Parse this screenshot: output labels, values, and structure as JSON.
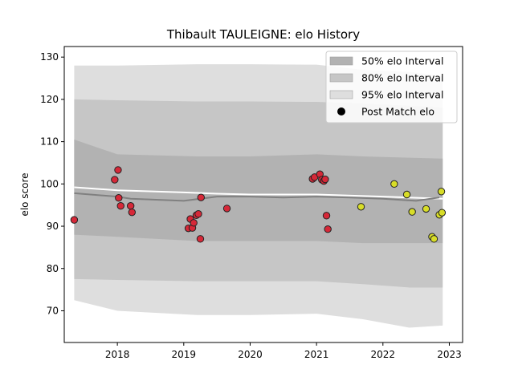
{
  "chart_data": {
    "type": "scatter",
    "title": "Thibault TAULEIGNE: elo History",
    "xlabel": "",
    "ylabel": "elo score",
    "xlim": [
      2017.2,
      2023.2
    ],
    "ylim": [
      62.5,
      132.5
    ],
    "x_ticks": [
      2018,
      2019,
      2020,
      2021,
      2022,
      2023
    ],
    "x_tick_labels": [
      "2018",
      "2019",
      "2020",
      "2021",
      "2022",
      "2023"
    ],
    "y_ticks": [
      70,
      80,
      90,
      100,
      110,
      120,
      130
    ],
    "y_tick_labels": [
      "70",
      "80",
      "90",
      "100",
      "110",
      "120",
      "130"
    ],
    "grid": false,
    "legend_position": "top-right",
    "legend": [
      {
        "label": "50% elo Interval",
        "kind": "patch",
        "color": "#b2b2b2"
      },
      {
        "label": "80% elo Interval",
        "kind": "patch",
        "color": "#c6c6c6"
      },
      {
        "label": "95% elo Interval",
        "kind": "patch",
        "color": "#dedede"
      },
      {
        "label": "Post Match elo",
        "kind": "marker",
        "color": "#000000"
      }
    ],
    "bands": [
      {
        "name": "95% elo Interval",
        "color": "#dedede",
        "x": [
          2017.35,
          2018.0,
          2019.2,
          2020.0,
          2021.0,
          2021.7,
          2022.4,
          2022.9
        ],
        "upper": [
          128.0,
          128.0,
          128.3,
          128.3,
          128.2,
          127.0,
          126.5,
          125.5
        ],
        "lower": [
          72.5,
          70.0,
          69.0,
          69.0,
          69.3,
          68.0,
          66.0,
          66.5
        ]
      },
      {
        "name": "80% elo Interval",
        "color": "#c6c6c6",
        "x": [
          2017.35,
          2018.0,
          2019.2,
          2020.0,
          2021.0,
          2021.7,
          2022.4,
          2022.9
        ],
        "upper": [
          120.0,
          119.8,
          119.5,
          119.5,
          119.4,
          119.0,
          118.5,
          118.0
        ],
        "lower": [
          77.5,
          77.3,
          77.0,
          77.0,
          77.0,
          76.3,
          75.5,
          75.5
        ]
      },
      {
        "name": "50% elo Interval",
        "color": "#b2b2b2",
        "x": [
          2017.35,
          2018.0,
          2019.2,
          2020.0,
          2021.0,
          2021.7,
          2022.4,
          2022.9
        ],
        "upper": [
          110.5,
          107.0,
          106.5,
          106.5,
          107.0,
          106.5,
          106.2,
          106.0
        ],
        "lower": [
          88.0,
          87.5,
          86.5,
          86.5,
          86.5,
          86.0,
          86.0,
          86.0
        ]
      }
    ],
    "lines": [
      {
        "name": "mean elo",
        "color": "#ffffff",
        "x": [
          2017.35,
          2018.0,
          2019.0,
          2019.5,
          2020.0,
          2021.0,
          2022.0,
          2022.9
        ],
        "y": [
          99.2,
          98.5,
          98.0,
          97.7,
          97.5,
          97.5,
          97.0,
          96.5
        ]
      },
      {
        "name": "rolling elo",
        "color": "#808080",
        "x": [
          2017.35,
          2018.0,
          2018.2,
          2019.0,
          2019.5,
          2020.0,
          2020.5,
          2021.0,
          2021.5,
          2022.0,
          2022.5,
          2022.85
        ],
        "y": [
          97.8,
          97.0,
          96.5,
          96.0,
          97.0,
          97.0,
          96.8,
          97.0,
          96.8,
          96.5,
          96.0,
          96.8
        ]
      }
    ],
    "series": [
      {
        "name": "Post Match elo",
        "fill": "#d62838",
        "edge": "#222222",
        "x": [
          2017.35,
          2017.96,
          2018.01,
          2018.02,
          2018.05,
          2018.2,
          2018.22,
          2019.07,
          2019.1,
          2019.13,
          2019.15,
          2019.19,
          2019.22,
          2019.25,
          2019.26,
          2019.65,
          2020.94,
          2020.97,
          2021.05,
          2021.08,
          2021.11,
          2021.13,
          2021.15,
          2021.17
        ],
        "y": [
          91.5,
          101.0,
          103.3,
          96.7,
          94.8,
          94.8,
          93.3,
          89.5,
          91.7,
          89.6,
          90.8,
          92.6,
          92.9,
          87.0,
          96.8,
          94.2,
          101.2,
          101.6,
          102.3,
          101.0,
          100.7,
          101.1,
          92.5,
          89.3
        ]
      },
      {
        "name": "Post Match elo",
        "fill": "#d8dd28",
        "edge": "#222222",
        "x": [
          2021.67,
          2022.17,
          2022.36,
          2022.44,
          2022.65,
          2022.74,
          2022.77,
          2022.85,
          2022.88,
          2022.89
        ],
        "y": [
          94.6,
          100.0,
          97.5,
          93.4,
          94.1,
          87.5,
          87.0,
          92.7,
          98.2,
          93.2
        ]
      }
    ]
  }
}
